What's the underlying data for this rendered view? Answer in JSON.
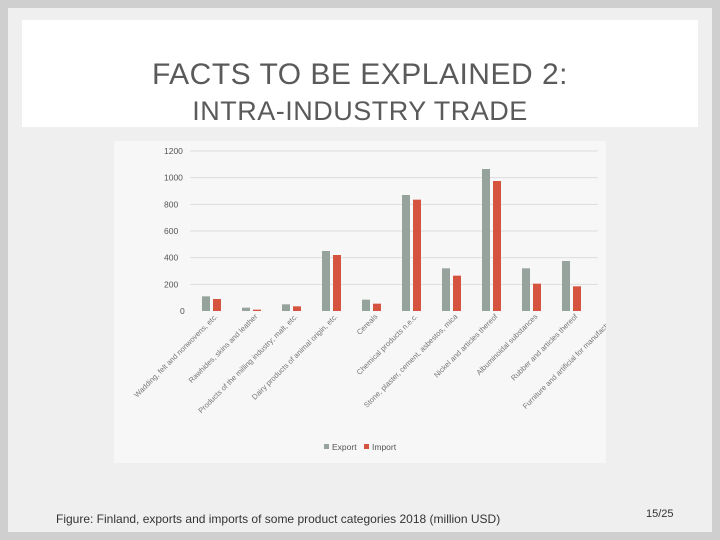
{
  "slide": {
    "title_line1": "FACTS TO BE EXPLAINED 2:",
    "title_line2": "INTRA-INDUSTRY TRADE",
    "caption": "Figure:  Finland, exports and imports of some product categories 2018 (million USD)",
    "page_number": "15/25"
  },
  "colors": {
    "export": "#95a39c",
    "import": "#d4543f",
    "grid": "#dcdcdc"
  },
  "chart_data": {
    "type": "bar",
    "categories": [
      "Wadding, felt and nonwovens, etc.",
      "Rawhides, skins and leather",
      "Products of the milling industry; malt, etc.",
      "Dairy products of animal origin, etc.",
      "Cereals",
      "Chemical products n.e.c.",
      "Stone, plaster, cement, asbestos, mica",
      "Nickel and articles thereof",
      "Albuminoidal substances",
      "Rubber and articles thereof",
      "Furniture and artificial for manufactures"
    ],
    "series": [
      {
        "name": "Export",
        "values": [
          110,
          25,
          50,
          450,
          85,
          870,
          320,
          1065,
          320,
          375,
          0
        ]
      },
      {
        "name": "Import",
        "values": [
          90,
          10,
          35,
          420,
          55,
          835,
          265,
          975,
          205,
          185,
          0
        ]
      }
    ],
    "y_ticks": [
      "0",
      "200",
      "400",
      "600",
      "800",
      "1000",
      "1200"
    ],
    "ylim": [
      0,
      1200
    ],
    "grid": true,
    "legend_position": "bottom"
  }
}
